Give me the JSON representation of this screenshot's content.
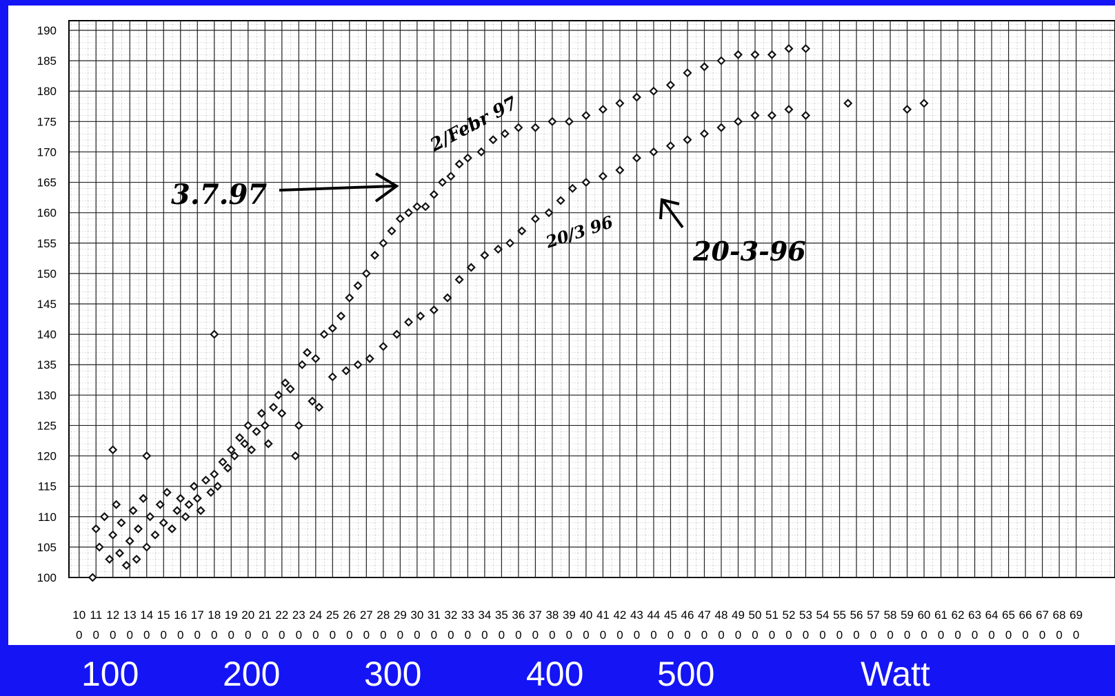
{
  "chart_data": {
    "type": "scatter",
    "xlim": [
      94,
      713
    ],
    "ylim": [
      100,
      190
    ],
    "xticks": [
      100,
      110,
      120,
      130,
      140,
      150,
      160,
      170,
      180,
      190,
      200,
      210,
      220,
      230,
      240,
      250,
      260,
      270,
      280,
      290,
      300,
      310,
      320,
      330,
      340,
      350,
      360,
      370,
      380,
      390,
      400,
      410,
      420,
      430,
      440,
      450,
      460,
      470,
      480,
      490,
      500,
      510,
      520,
      530,
      540,
      550,
      560,
      570,
      580,
      590,
      600,
      610,
      620,
      630,
      640,
      650,
      660,
      670,
      680,
      690
    ],
    "yticks": [
      100,
      105,
      110,
      115,
      120,
      125,
      130,
      135,
      140,
      145,
      150,
      155,
      160,
      165,
      170,
      175,
      180,
      185,
      190
    ],
    "grid": true,
    "series": [
      {
        "color": "#111111",
        "x": [
          110,
          112,
          115,
          118,
          120,
          122,
          124,
          125,
          128,
          130,
          132,
          134,
          135,
          138,
          140,
          142,
          145,
          148,
          150,
          152,
          155,
          158,
          160,
          163,
          165,
          168,
          170,
          172,
          175,
          178,
          180,
          182,
          185,
          188,
          190,
          192,
          195,
          198,
          200,
          202,
          205,
          208,
          210,
          212,
          215,
          218,
          220,
          222,
          225,
          228,
          230,
          232,
          235,
          238,
          240,
          242,
          245,
          120,
          140,
          180,
          108,
          250,
          255,
          260,
          265,
          270,
          275,
          280,
          285,
          290,
          295,
          300,
          305,
          310,
          315,
          320,
          325,
          330,
          338,
          345,
          352,
          360,
          370,
          380,
          390,
          400,
          410,
          420,
          430,
          440,
          450,
          460,
          470,
          480,
          490,
          500,
          510,
          520,
          530,
          555,
          590,
          600,
          250,
          258,
          265,
          272,
          280,
          288,
          295,
          302,
          310,
          318,
          325,
          332,
          340,
          348,
          355,
          362,
          370,
          378,
          385,
          392,
          400,
          410,
          420,
          430,
          440,
          450,
          460,
          470,
          480,
          490,
          500,
          510,
          520,
          530
        ],
        "values": [
          108,
          105,
          110,
          103,
          107,
          112,
          104,
          109,
          102,
          106,
          111,
          103,
          108,
          113,
          105,
          110,
          107,
          112,
          109,
          114,
          108,
          111,
          113,
          110,
          112,
          115,
          113,
          111,
          116,
          114,
          117,
          115,
          119,
          118,
          121,
          120,
          123,
          122,
          125,
          121,
          124,
          127,
          125,
          122,
          128,
          130,
          127,
          132,
          131,
          120,
          125,
          135,
          137,
          129,
          136,
          128,
          140,
          121,
          120,
          140,
          100,
          141,
          143,
          146,
          148,
          150,
          153,
          155,
          157,
          159,
          160,
          161,
          161,
          163,
          165,
          166,
          168,
          169,
          170,
          172,
          173,
          174,
          174,
          175,
          175,
          176,
          177,
          178,
          179,
          180,
          181,
          183,
          184,
          185,
          186,
          186,
          186,
          187,
          187,
          178,
          177,
          178,
          133,
          134,
          135,
          136,
          138,
          140,
          142,
          143,
          144,
          146,
          149,
          151,
          153,
          154,
          155,
          157,
          159,
          160,
          162,
          164,
          165,
          166,
          167,
          169,
          170,
          171,
          172,
          173,
          174,
          175,
          176,
          176,
          177,
          176
        ]
      }
    ],
    "annotations": [
      "3.7.97",
      "2/Febr 97",
      "20/3 96",
      "20-3-96"
    ],
    "footer_labels": [
      "100",
      "200",
      "300",
      "400",
      "500",
      "Watt"
    ]
  }
}
